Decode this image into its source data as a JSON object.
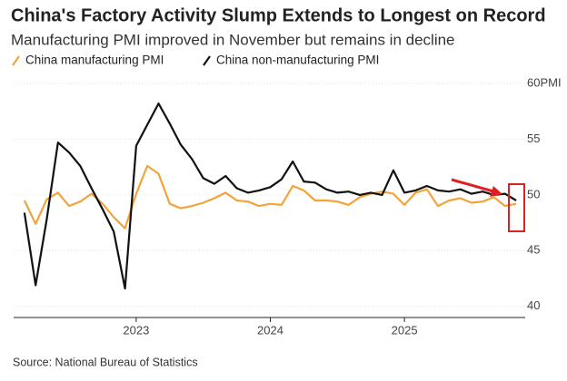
{
  "chart_data": {
    "type": "line",
    "title": "China's Factory Activity Slump Extends to Longest on Record",
    "subtitle": "Manufacturing PMI improved in November but remains in decline",
    "source": "Source: National Bureau of Statistics",
    "x": [
      2022.167,
      2022.25,
      2022.333,
      2022.417,
      2022.5,
      2022.583,
      2022.667,
      2022.75,
      2022.833,
      2022.917,
      2023.0,
      2023.083,
      2023.167,
      2023.25,
      2023.333,
      2023.417,
      2023.5,
      2023.583,
      2023.667,
      2023.75,
      2023.833,
      2023.917,
      2024.0,
      2024.083,
      2024.167,
      2024.25,
      2024.333,
      2024.417,
      2024.5,
      2024.583,
      2024.667,
      2024.75,
      2024.833,
      2024.917,
      2025.0,
      2025.083,
      2025.167,
      2025.25,
      2025.333,
      2025.417,
      2025.5,
      2025.583,
      2025.667,
      2025.75,
      2025.833
    ],
    "series": [
      {
        "name": "China manufacturing PMI",
        "color": "#f2a33a",
        "values": [
          49.5,
          47.4,
          49.6,
          50.2,
          49.0,
          49.4,
          50.1,
          49.2,
          48.0,
          47.0,
          50.1,
          52.6,
          51.9,
          49.2,
          48.8,
          49.0,
          49.3,
          49.7,
          50.2,
          49.5,
          49.4,
          49.0,
          49.2,
          49.1,
          50.8,
          50.4,
          49.5,
          49.5,
          49.4,
          49.1,
          49.8,
          50.1,
          50.3,
          50.1,
          49.1,
          50.2,
          50.5,
          49.0,
          49.5,
          49.7,
          49.3,
          49.4,
          49.8,
          49.0,
          49.2
        ]
      },
      {
        "name": "China non-manufacturing PMI",
        "color": "#111111",
        "values": [
          48.4,
          41.9,
          47.8,
          54.7,
          53.8,
          52.6,
          50.6,
          48.7,
          46.7,
          41.6,
          54.4,
          56.3,
          58.2,
          56.4,
          54.5,
          53.2,
          51.5,
          51.0,
          51.7,
          50.6,
          50.2,
          50.4,
          50.7,
          51.4,
          53.0,
          51.2,
          51.1,
          50.5,
          50.2,
          50.3,
          50.0,
          50.2,
          50.0,
          52.2,
          50.2,
          50.4,
          50.8,
          50.4,
          50.3,
          50.5,
          50.1,
          50.3,
          50.0,
          50.1,
          49.5
        ]
      }
    ],
    "xlim": [
      2022.12,
      2025.88
    ],
    "xticks": [
      2023,
      2024,
      2025
    ],
    "ylim": [
      39,
      60
    ],
    "yticks": [
      40,
      45,
      50,
      55,
      {
        "value": 60,
        "label": "60PMI"
      }
    ],
    "grid": true
  }
}
